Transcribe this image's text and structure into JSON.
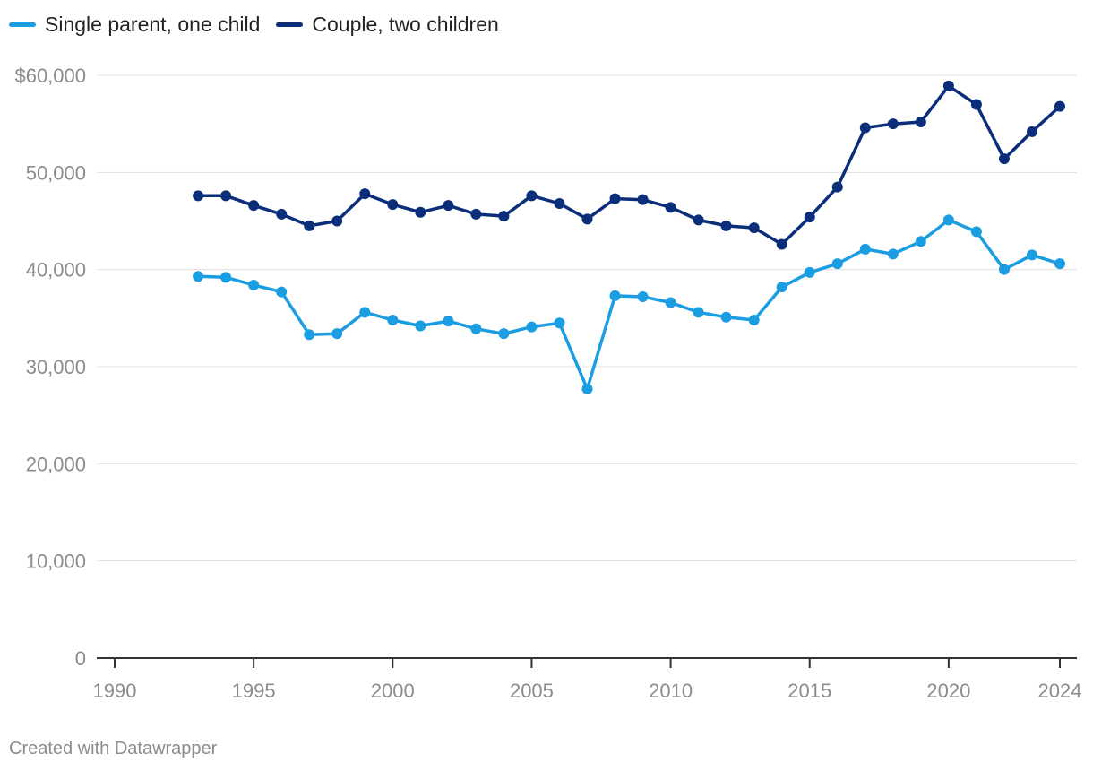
{
  "chart_data": {
    "type": "line",
    "title": "",
    "xlabel": "",
    "ylabel": "",
    "x": [
      1993,
      1994,
      1995,
      1996,
      1997,
      1998,
      1999,
      2000,
      2001,
      2002,
      2003,
      2004,
      2005,
      2006,
      2007,
      2008,
      2009,
      2010,
      2011,
      2012,
      2013,
      2014,
      2015,
      2016,
      2017,
      2018,
      2019,
      2020,
      2021,
      2022,
      2023,
      2024
    ],
    "series": [
      {
        "name": "Single parent, one child",
        "color": "#1b9de2",
        "values": [
          39300,
          39200,
          38400,
          37700,
          33300,
          33400,
          35600,
          34800,
          34200,
          34700,
          33900,
          33400,
          34100,
          34500,
          27700,
          37300,
          37200,
          36600,
          35600,
          35100,
          34800,
          38200,
          39700,
          40600,
          42100,
          41600,
          42900,
          45100,
          43900,
          40000,
          41500,
          40600
        ]
      },
      {
        "name": "Couple, two children",
        "color": "#0a2e7a",
        "values": [
          47600,
          47600,
          46600,
          45700,
          44500,
          45000,
          47800,
          46700,
          45900,
          46600,
          45700,
          45500,
          47600,
          46800,
          45200,
          47300,
          47200,
          46400,
          45100,
          44500,
          44300,
          42600,
          45400,
          48500,
          54600,
          55000,
          55200,
          58900,
          57000,
          51400,
          54200,
          56800
        ]
      }
    ],
    "xlim": [
      1990,
      2024
    ],
    "ylim": [
      0,
      60000
    ],
    "x_ticks": [
      1990,
      1995,
      2000,
      2005,
      2010,
      2015,
      2020,
      2024
    ],
    "x_tick_labels": [
      "1990",
      "1995",
      "2000",
      "2005",
      "2010",
      "2015",
      "2020",
      "2024"
    ],
    "y_ticks": [
      0,
      10000,
      20000,
      30000,
      40000,
      50000,
      60000
    ],
    "y_tick_labels": [
      "0",
      "10,000",
      "20,000",
      "30,000",
      "40,000",
      "50,000",
      "$60,000"
    ],
    "grid": true,
    "legend": "top-left",
    "colors": {
      "grid": "#e0e0e0",
      "axis": "#333333",
      "tick_label": "#8c8c8c"
    }
  },
  "legend": {
    "items": [
      {
        "label": "Single parent, one child",
        "color": "#1b9de2"
      },
      {
        "label": "Couple, two children",
        "color": "#0a2e7a"
      }
    ]
  },
  "footer": {
    "credit": "Created with Datawrapper"
  }
}
